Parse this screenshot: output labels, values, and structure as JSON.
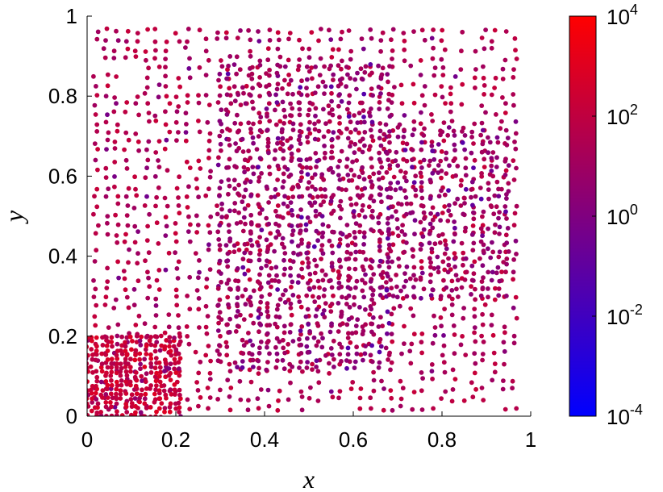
{
  "chart_data": {
    "type": "scatter",
    "title": "",
    "xlabel": "x",
    "ylabel": "y",
    "xlim": [
      0,
      1
    ],
    "ylim": [
      0,
      1
    ],
    "xticks": [
      "0",
      "0.2",
      "0.4",
      "0.6",
      "0.8",
      "1"
    ],
    "yticks": [
      "0",
      "0.2",
      "0.4",
      "0.6",
      "0.8",
      "1"
    ],
    "grid": false,
    "colorbar": {
      "scale": "log",
      "range": [
        0.0001,
        10000
      ],
      "colormap": [
        "#0000ff",
        "#ff0000"
      ],
      "ticks": [
        {
          "base": "10",
          "exp": "4"
        },
        {
          "base": "10",
          "exp": "2"
        },
        {
          "base": "10",
          "exp": "0"
        },
        {
          "base": "10",
          "exp": "-2"
        },
        {
          "base": "10",
          "exp": "-4"
        }
      ]
    },
    "regions": [
      {
        "x": [
          0.02,
          0.98
        ],
        "y": [
          0.02,
          0.97
        ],
        "spacing": 0.023,
        "log10_value": 1.6
      },
      {
        "x": [
          0.0,
          0.22
        ],
        "y": [
          0.0,
          0.2
        ],
        "spacing": 0.011,
        "log10_value": 2.3
      },
      {
        "x": [
          0.3,
          0.68
        ],
        "y": [
          0.12,
          0.88
        ],
        "spacing": 0.018,
        "log10_value": 0.8
      },
      {
        "x": [
          0.68,
          0.95
        ],
        "y": [
          0.3,
          0.72
        ],
        "spacing": 0.019,
        "log10_value": 0.9
      }
    ]
  }
}
